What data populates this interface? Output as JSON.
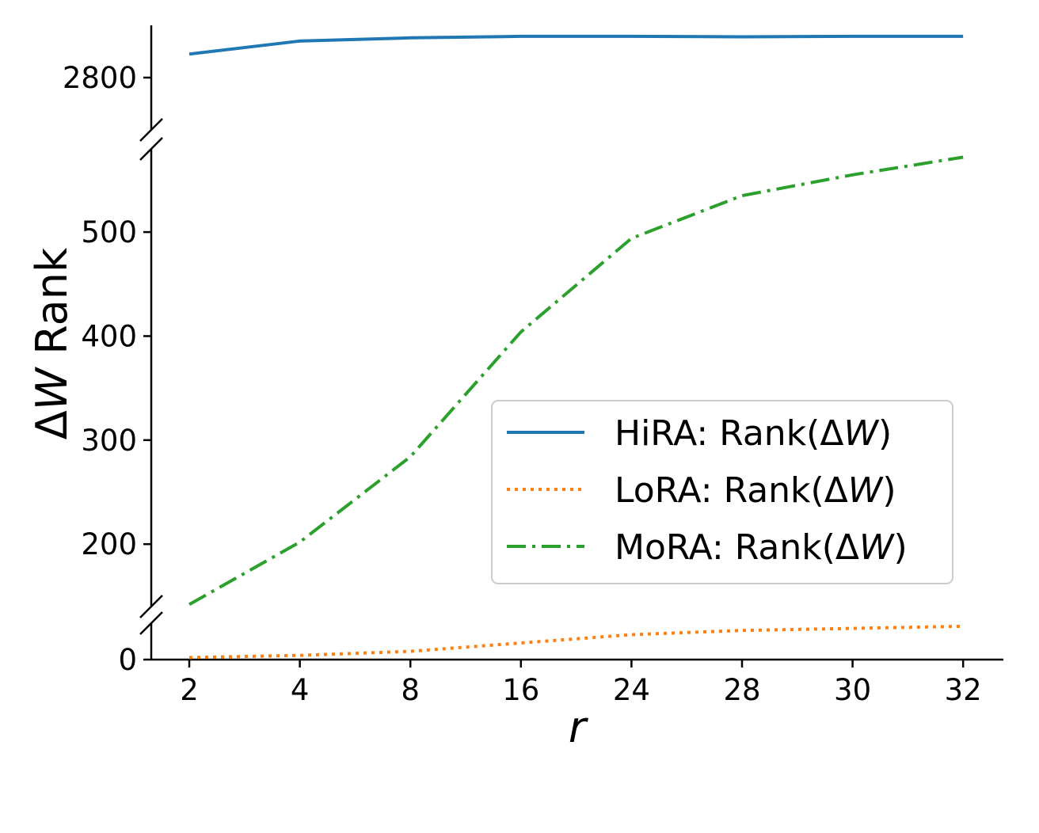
{
  "chart_data": {
    "type": "line",
    "xlabel": "r",
    "ylabel": "ΔW Rank",
    "categories": [
      "2",
      "4",
      "8",
      "16",
      "24",
      "28",
      "30",
      "32"
    ],
    "y_axis": "broken",
    "y_segments": [
      {
        "name": "top",
        "range": [
          2700,
          2900
        ],
        "ticks": [
          "2800"
        ]
      },
      {
        "name": "middle",
        "range": [
          140,
          580
        ],
        "ticks": [
          "200",
          "300",
          "400",
          "500"
        ]
      },
      {
        "name": "bottom",
        "range": [
          0,
          35
        ],
        "ticks": [
          "0"
        ]
      }
    ],
    "legend": {
      "placement": "center-right",
      "entries": [
        {
          "label_prefix": "HiRA: Rank(Δ",
          "label_var": "W",
          "label_suffix": ")"
        },
        {
          "label_prefix": "LoRA: Rank(Δ",
          "label_var": "W",
          "label_suffix": ")"
        },
        {
          "label_prefix": "MoRA: Rank(Δ",
          "label_var": "W",
          "label_suffix": ")"
        }
      ]
    },
    "series": [
      {
        "name": "HiRA: Rank(ΔW)",
        "color": "#1f77b4",
        "style": "solid",
        "values": [
          2845,
          2870,
          2876,
          2879,
          2879,
          2878,
          2879,
          2879
        ]
      },
      {
        "name": "LoRA: Rank(ΔW)",
        "color": "#ff7f0e",
        "style": "dotted",
        "values": [
          2,
          4,
          8,
          16,
          24,
          28,
          30,
          32
        ]
      },
      {
        "name": "MoRA: Rank(ΔW)",
        "color": "#2ca02c",
        "style": "dashdot",
        "values": [
          142,
          202,
          284,
          404,
          494,
          535,
          555,
          572
        ]
      }
    ],
    "grid": false
  }
}
